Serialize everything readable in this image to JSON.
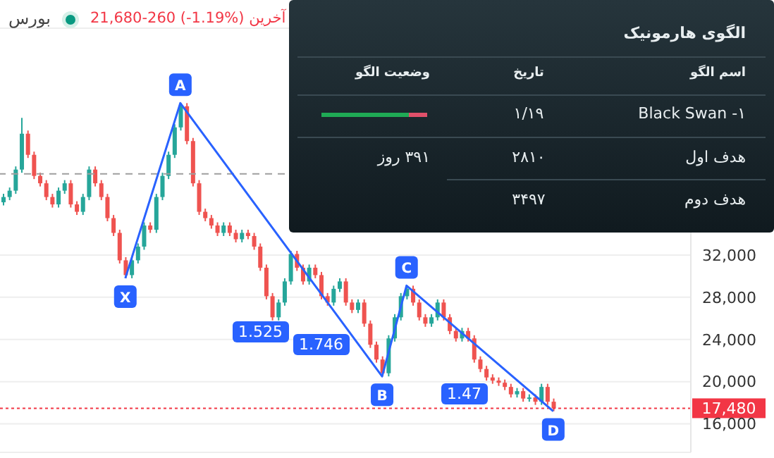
{
  "chart_data": [
    {
      "type": "candlestick",
      "subtitle": "بورس",
      "annotations": [
        "21,680-260 (-1.19%) آخرین",
        "1.525",
        "1.746",
        "1.47"
      ],
      "categories": [
        null,
        null,
        null,
        null,
        null,
        null,
        null,
        null,
        null,
        null,
        null,
        null,
        null,
        null,
        null,
        null,
        null,
        null,
        null,
        null,
        null,
        null,
        null,
        null,
        null,
        null,
        null,
        null,
        null,
        null,
        null,
        null,
        null,
        null,
        null,
        null,
        null,
        null,
        null,
        null,
        null,
        null,
        null,
        null,
        null,
        null,
        null,
        null,
        null,
        null,
        null,
        null,
        null,
        null,
        null,
        null,
        null,
        null,
        null,
        null,
        null,
        null,
        null,
        null,
        null,
        null,
        null,
        null,
        null,
        null,
        null,
        null,
        null,
        null,
        null,
        null,
        null,
        null,
        null,
        null,
        null,
        null,
        null,
        null,
        null,
        null,
        null,
        null,
        null,
        null,
        null,
        null,
        null,
        null,
        null,
        null,
        null,
        null,
        null,
        null,
        null,
        null,
        null,
        null,
        null,
        null,
        null,
        null,
        null,
        null,
        null,
        null,
        null
      ],
      "ohlc": [
        [
          37000,
          37800,
          36700,
          37500
        ],
        [
          37500,
          38400,
          37200,
          38100
        ],
        [
          38100,
          40400,
          37800,
          40100
        ],
        [
          40100,
          45000,
          39800,
          43500
        ],
        [
          43500,
          43800,
          41200,
          41500
        ],
        [
          41500,
          41800,
          39200,
          39500
        ],
        [
          39500,
          39800,
          38500,
          38800
        ],
        [
          38800,
          39100,
          37200,
          37500
        ],
        [
          37500,
          37800,
          36500,
          36800
        ],
        [
          36800,
          38400,
          36500,
          38100
        ],
        [
          38100,
          39100,
          37800,
          38800
        ],
        [
          38800,
          39100,
          36500,
          36800
        ],
        [
          36800,
          37100,
          35800,
          36100
        ],
        [
          36100,
          37800,
          35800,
          37500
        ],
        [
          37500,
          40400,
          37200,
          40100
        ],
        [
          40100,
          40400,
          38500,
          38800
        ],
        [
          38800,
          39100,
          37200,
          37500
        ],
        [
          37500,
          37800,
          35200,
          35500
        ],
        [
          35500,
          35800,
          33800,
          34100
        ],
        [
          34100,
          34400,
          31200,
          31500
        ],
        [
          31500,
          31800,
          29800,
          30100
        ],
        [
          30100,
          31800,
          29800,
          31500
        ],
        [
          31500,
          33100,
          31200,
          32800
        ],
        [
          32800,
          35100,
          32500,
          34800
        ],
        [
          34800,
          35100,
          34100,
          34400
        ],
        [
          34400,
          37800,
          34100,
          37500
        ],
        [
          37500,
          39800,
          37200,
          39500
        ],
        [
          39500,
          41800,
          39200,
          41500
        ],
        [
          41500,
          44400,
          41200,
          44100
        ],
        [
          44100,
          46400,
          43800,
          46100
        ],
        [
          46100,
          46400,
          42500,
          42800
        ],
        [
          42800,
          43100,
          38500,
          38800
        ],
        [
          38800,
          39100,
          35800,
          36100
        ],
        [
          36100,
          36400,
          35200,
          35500
        ],
        [
          35500,
          35800,
          34500,
          34800
        ],
        [
          34800,
          35100,
          33800,
          34100
        ],
        [
          34100,
          35100,
          33800,
          34800
        ],
        [
          34800,
          35100,
          33800,
          34100
        ],
        [
          34100,
          34400,
          33200,
          33500
        ],
        [
          33500,
          34400,
          33200,
          34100
        ],
        [
          34100,
          34400,
          33500,
          33800
        ],
        [
          33800,
          34100,
          32500,
          32800
        ],
        [
          32800,
          33100,
          30500,
          30800
        ],
        [
          30800,
          31100,
          27800,
          28100
        ],
        [
          28100,
          28400,
          25800,
          26100
        ],
        [
          26100,
          27800,
          25800,
          27500
        ],
        [
          27500,
          29800,
          27200,
          29500
        ],
        [
          29500,
          32400,
          29200,
          32100
        ],
        [
          32100,
          32400,
          30500,
          30800
        ],
        [
          30800,
          31100,
          29200,
          29500
        ],
        [
          29500,
          31100,
          29200,
          30800
        ],
        [
          30800,
          31100,
          29800,
          30100
        ],
        [
          30100,
          30400,
          27800,
          28100
        ],
        [
          28100,
          28400,
          27200,
          27500
        ],
        [
          27500,
          29100,
          27200,
          28800
        ],
        [
          28800,
          29800,
          28500,
          29500
        ],
        [
          29500,
          29800,
          27200,
          27500
        ],
        [
          27500,
          27800,
          26500,
          26800
        ],
        [
          26800,
          27800,
          26500,
          27500
        ],
        [
          27500,
          27800,
          25200,
          25500
        ],
        [
          25500,
          25800,
          23200,
          23500
        ],
        [
          23500,
          23800,
          21800,
          22100
        ],
        [
          22100,
          22400,
          20500,
          20800
        ],
        [
          20800,
          24400,
          20500,
          24100
        ],
        [
          24100,
          26400,
          23800,
          26100
        ],
        [
          26100,
          28400,
          25800,
          28100
        ],
        [
          28100,
          29100,
          27800,
          28800
        ],
        [
          28800,
          29100,
          27200,
          27500
        ],
        [
          27500,
          27800,
          25800,
          26100
        ],
        [
          26100,
          26400,
          25200,
          25500
        ],
        [
          25500,
          26400,
          25200,
          26100
        ],
        [
          26100,
          27800,
          25800,
          27500
        ],
        [
          27500,
          27800,
          25800,
          26100
        ],
        [
          26100,
          26400,
          24500,
          24800
        ],
        [
          24800,
          25100,
          23800,
          24100
        ],
        [
          24100,
          25100,
          23800,
          24800
        ],
        [
          24800,
          25100,
          23800,
          24100
        ],
        [
          24100,
          24400,
          21800,
          22100
        ],
        [
          22100,
          22400,
          20900,
          21200
        ],
        [
          21200,
          21500,
          20100,
          20400
        ],
        [
          20400,
          20700,
          19800,
          20100
        ],
        [
          20100,
          20400,
          19600,
          19900
        ],
        [
          19900,
          20200,
          19200,
          19500
        ],
        [
          19500,
          19800,
          18500,
          18800
        ],
        [
          18800,
          19400,
          18500,
          19100
        ],
        [
          19100,
          19400,
          18100,
          18400
        ],
        [
          18400,
          18800,
          18100,
          18500
        ],
        [
          18500,
          18800,
          17800,
          18100
        ],
        [
          18100,
          19800,
          17800,
          19500
        ],
        [
          19500,
          19800,
          17800,
          18100
        ],
        [
          18100,
          18400,
          17200,
          17480
        ],
        null,
        null,
        null,
        null,
        null,
        null,
        null,
        null,
        null,
        null,
        null,
        null,
        null,
        null,
        null,
        null,
        null,
        null,
        null,
        null,
        null,
        null
      ],
      "series": [
        {
          "type": "line",
          "color": "#2962ff",
          "values": [
            null,
            null,
            null,
            null,
            null,
            null,
            null,
            null,
            null,
            null,
            null,
            null,
            null,
            null,
            null,
            null,
            null,
            null,
            null,
            null,
            29800,
            null,
            null,
            null,
            null,
            null,
            null,
            null,
            null,
            46400,
            null,
            null,
            null,
            null,
            null,
            null,
            null,
            null,
            null,
            null,
            null,
            null,
            null,
            null,
            null,
            null,
            null,
            null,
            null,
            null,
            null,
            null,
            null,
            null,
            null,
            null,
            null,
            null,
            null,
            null,
            null,
            null,
            20500,
            null,
            null,
            null,
            29100,
            null,
            null,
            null,
            null,
            null,
            null,
            null,
            null,
            null,
            null,
            null,
            null,
            null,
            null,
            null,
            null,
            null,
            null,
            null,
            null,
            null,
            null,
            null,
            17200,
            null,
            null,
            null,
            null,
            null,
            null,
            null,
            null,
            null,
            null,
            null,
            null,
            null,
            null,
            null,
            null,
            null,
            null,
            null,
            null,
            null,
            null
          ],
          "value_labels": [
            null,
            null,
            null,
            null,
            null,
            null,
            null,
            null,
            null,
            null,
            null,
            null,
            null,
            null,
            null,
            null,
            null,
            null,
            null,
            null,
            "X",
            null,
            null,
            null,
            null,
            null,
            null,
            null,
            null,
            "A",
            null,
            null,
            null,
            null,
            null,
            null,
            null,
            null,
            null,
            null,
            null,
            null,
            null,
            null,
            null,
            null,
            null,
            null,
            null,
            null,
            null,
            null,
            null,
            null,
            null,
            null,
            null,
            null,
            null,
            null,
            null,
            null,
            "B",
            null,
            null,
            null,
            "C",
            null,
            null,
            null,
            null,
            null,
            null,
            null,
            null,
            null,
            null,
            null,
            null,
            null,
            null,
            null,
            null,
            null,
            null,
            null,
            null,
            null,
            null,
            null,
            "D",
            null,
            null,
            null,
            null,
            null,
            null,
            null,
            null,
            null,
            null,
            null,
            null,
            null,
            null,
            null,
            null,
            null,
            null,
            null,
            null,
            null,
            null
          ]
        }
      ],
      "ylim": [
        13300,
        53500
      ],
      "yticks": [
        {
          "value": 16000,
          "label": "16,000"
        },
        {
          "value": 20000,
          "label": "20,000"
        },
        {
          "value": 24000,
          "label": "24,000"
        },
        {
          "value": 28000,
          "label": "28,000"
        },
        {
          "value": 32000,
          "label": "32,000"
        }
      ],
      "grid": "y",
      "tick_labels": "y",
      "ref_lines": [
        {
          "axis": "y",
          "value": 17480,
          "label": "17,480",
          "color": "#f23645",
          "line_style": "dotted"
        },
        {
          "axis": "y",
          "value": 39700,
          "color": "#9e9e9e",
          "line_style": "dashed"
        }
      ]
    },
    {
      "type": "other",
      "title": "الگوی هارمونیک",
      "annotations": [
        "اسم الگو",
        "تاریخ",
        "وضعیت الگو",
        "Black Swan -۱",
        "۱/۱۹",
        "هدف اول",
        "۲۸۱۰",
        "۳۹۱ روز",
        "هدف دوم",
        "۳۴۹۷"
      ]
    }
  ]
}
